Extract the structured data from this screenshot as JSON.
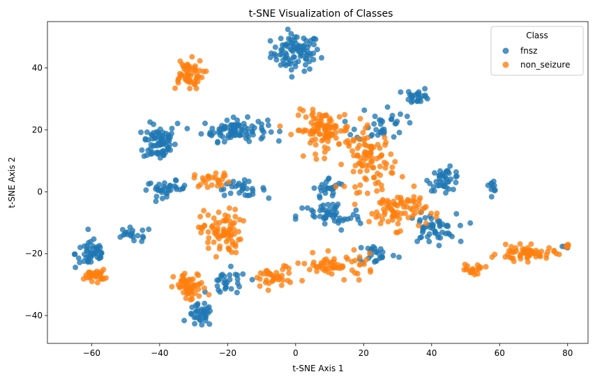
{
  "chart_data": {
    "type": "scatter",
    "title": "t-SNE Visualization of Classes",
    "xlabel": "t-SNE Axis 1",
    "ylabel": "t-SNE Axis 2",
    "xlim": [
      -73,
      86
    ],
    "ylim": [
      -49,
      55
    ],
    "xticks": [
      -60,
      -40,
      -20,
      0,
      20,
      40,
      60,
      80
    ],
    "yticks": [
      -40,
      -20,
      0,
      20,
      40
    ],
    "xtick_labels": [
      "−60",
      "−40",
      "−20",
      "0",
      "20",
      "40",
      "60",
      "80"
    ],
    "ytick_labels": [
      "−40",
      "−20",
      "0",
      "20",
      "40"
    ],
    "grid": false,
    "legend": {
      "title": "Class",
      "placement": "upper right"
    },
    "series": [
      {
        "name": "fnsz",
        "color": "#1f77b4",
        "clusters": [
          {
            "center": [
              0,
              45
            ],
            "spread": [
              6,
              5
            ],
            "count": 90
          },
          {
            "center": [
              -40,
              16
            ],
            "spread": [
              4,
              5
            ],
            "count": 75
          },
          {
            "center": [
              -18,
              20
            ],
            "spread": [
              8,
              3
            ],
            "count": 90
          },
          {
            "center": [
              -38,
              1
            ],
            "spread": [
              5,
              2
            ],
            "count": 35
          },
          {
            "center": [
              -16,
              1
            ],
            "spread": [
              6,
              2
            ],
            "count": 30
          },
          {
            "center": [
              -60,
              -20
            ],
            "spread": [
              4,
              4
            ],
            "count": 50
          },
          {
            "center": [
              -48,
              -14
            ],
            "spread": [
              5,
              2
            ],
            "count": 20
          },
          {
            "center": [
              -28,
              -40
            ],
            "spread": [
              3,
              3
            ],
            "count": 35
          },
          {
            "center": [
              -20,
              -30
            ],
            "spread": [
              5,
              4
            ],
            "count": 30
          },
          {
            "center": [
              36,
              31
            ],
            "spread": [
              3,
              2
            ],
            "count": 25
          },
          {
            "center": [
              44,
              4
            ],
            "spread": [
              4,
              3
            ],
            "count": 40
          },
          {
            "center": [
              58,
              2
            ],
            "spread": [
              1,
              1.5
            ],
            "count": 10
          },
          {
            "center": [
              40,
              -12
            ],
            "spread": [
              6,
              4
            ],
            "count": 50
          },
          {
            "center": [
              10,
              -8
            ],
            "spread": [
              8,
              4
            ],
            "count": 50
          },
          {
            "center": [
              24,
              -20
            ],
            "spread": [
              5,
              3
            ],
            "count": 25
          },
          {
            "center": [
              10,
              1
            ],
            "spread": [
              4,
              3
            ],
            "count": 25
          },
          {
            "center": [
              25,
              22
            ],
            "spread": [
              6,
              5
            ],
            "count": 35
          },
          {
            "center": [
              80,
              -18
            ],
            "spread": [
              1,
              0.5
            ],
            "count": 4
          }
        ]
      },
      {
        "name": "non_seizure",
        "color": "#ff7f0e",
        "clusters": [
          {
            "center": [
              -32,
              38
            ],
            "spread": [
              4,
              4
            ],
            "count": 55
          },
          {
            "center": [
              -22,
              -13
            ],
            "spread": [
              5,
              6
            ],
            "count": 80
          },
          {
            "center": [
              -31,
              -31
            ],
            "spread": [
              4,
              4
            ],
            "count": 55
          },
          {
            "center": [
              -59,
              -27
            ],
            "spread": [
              2.5,
              1.5
            ],
            "count": 30
          },
          {
            "center": [
              -24,
              4
            ],
            "spread": [
              5,
              2
            ],
            "count": 25
          },
          {
            "center": [
              8,
              20
            ],
            "spread": [
              7,
              5
            ],
            "count": 100
          },
          {
            "center": [
              22,
              10
            ],
            "spread": [
              6,
              8
            ],
            "count": 90
          },
          {
            "center": [
              30,
              -6
            ],
            "spread": [
              7,
              5
            ],
            "count": 80
          },
          {
            "center": [
              12,
              -24
            ],
            "spread": [
              10,
              3
            ],
            "count": 60
          },
          {
            "center": [
              -7,
              -28
            ],
            "spread": [
              5,
              3
            ],
            "count": 35
          },
          {
            "center": [
              68,
              -20
            ],
            "spread": [
              7,
              2
            ],
            "count": 60
          },
          {
            "center": [
              52,
              -25
            ],
            "spread": [
              3,
              1.5
            ],
            "count": 20
          },
          {
            "center": [
              80,
              -17.5
            ],
            "spread": [
              0.8,
              0.5
            ],
            "count": 5
          }
        ]
      }
    ]
  }
}
